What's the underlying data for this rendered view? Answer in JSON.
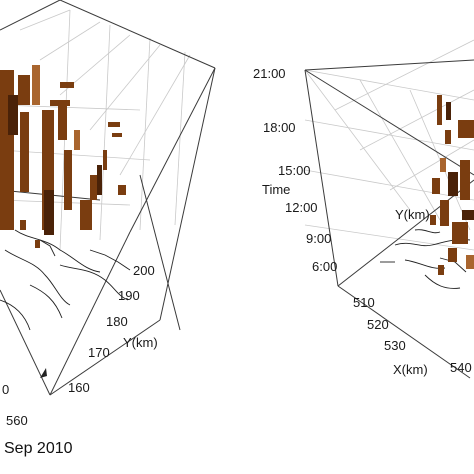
{
  "caption": "Sep 2010",
  "colors": {
    "cell_fill": "#7a3d10",
    "cell_dark": "#4a2208",
    "cell_light": "#a9652e",
    "trace": "#222222",
    "grid": "#c9c9c9"
  },
  "chart_data": [
    {
      "type": "scatter",
      "panel": "left",
      "projection": "3d",
      "ylabel": "Y(km)",
      "y_ticks": [
        "200",
        "190",
        "180",
        "170",
        "160"
      ],
      "x_ticks": [
        "560"
      ],
      "x_tick_partial": "0",
      "ylim": [
        160,
        200
      ],
      "grid": true
    },
    {
      "type": "scatter",
      "panel": "right",
      "projection": "3d",
      "zlabel": "Time",
      "xlabel": "X(km)",
      "ylabel": "Y(km)",
      "z_ticks": [
        "21:00",
        "18:00",
        "15:00",
        "12:00",
        "9:00",
        "6:00"
      ],
      "x_ticks": [
        "510",
        "520",
        "530",
        "540"
      ],
      "zlim": [
        "6:00",
        "21:00"
      ],
      "xlim": [
        510,
        540
      ],
      "grid": true
    }
  ]
}
